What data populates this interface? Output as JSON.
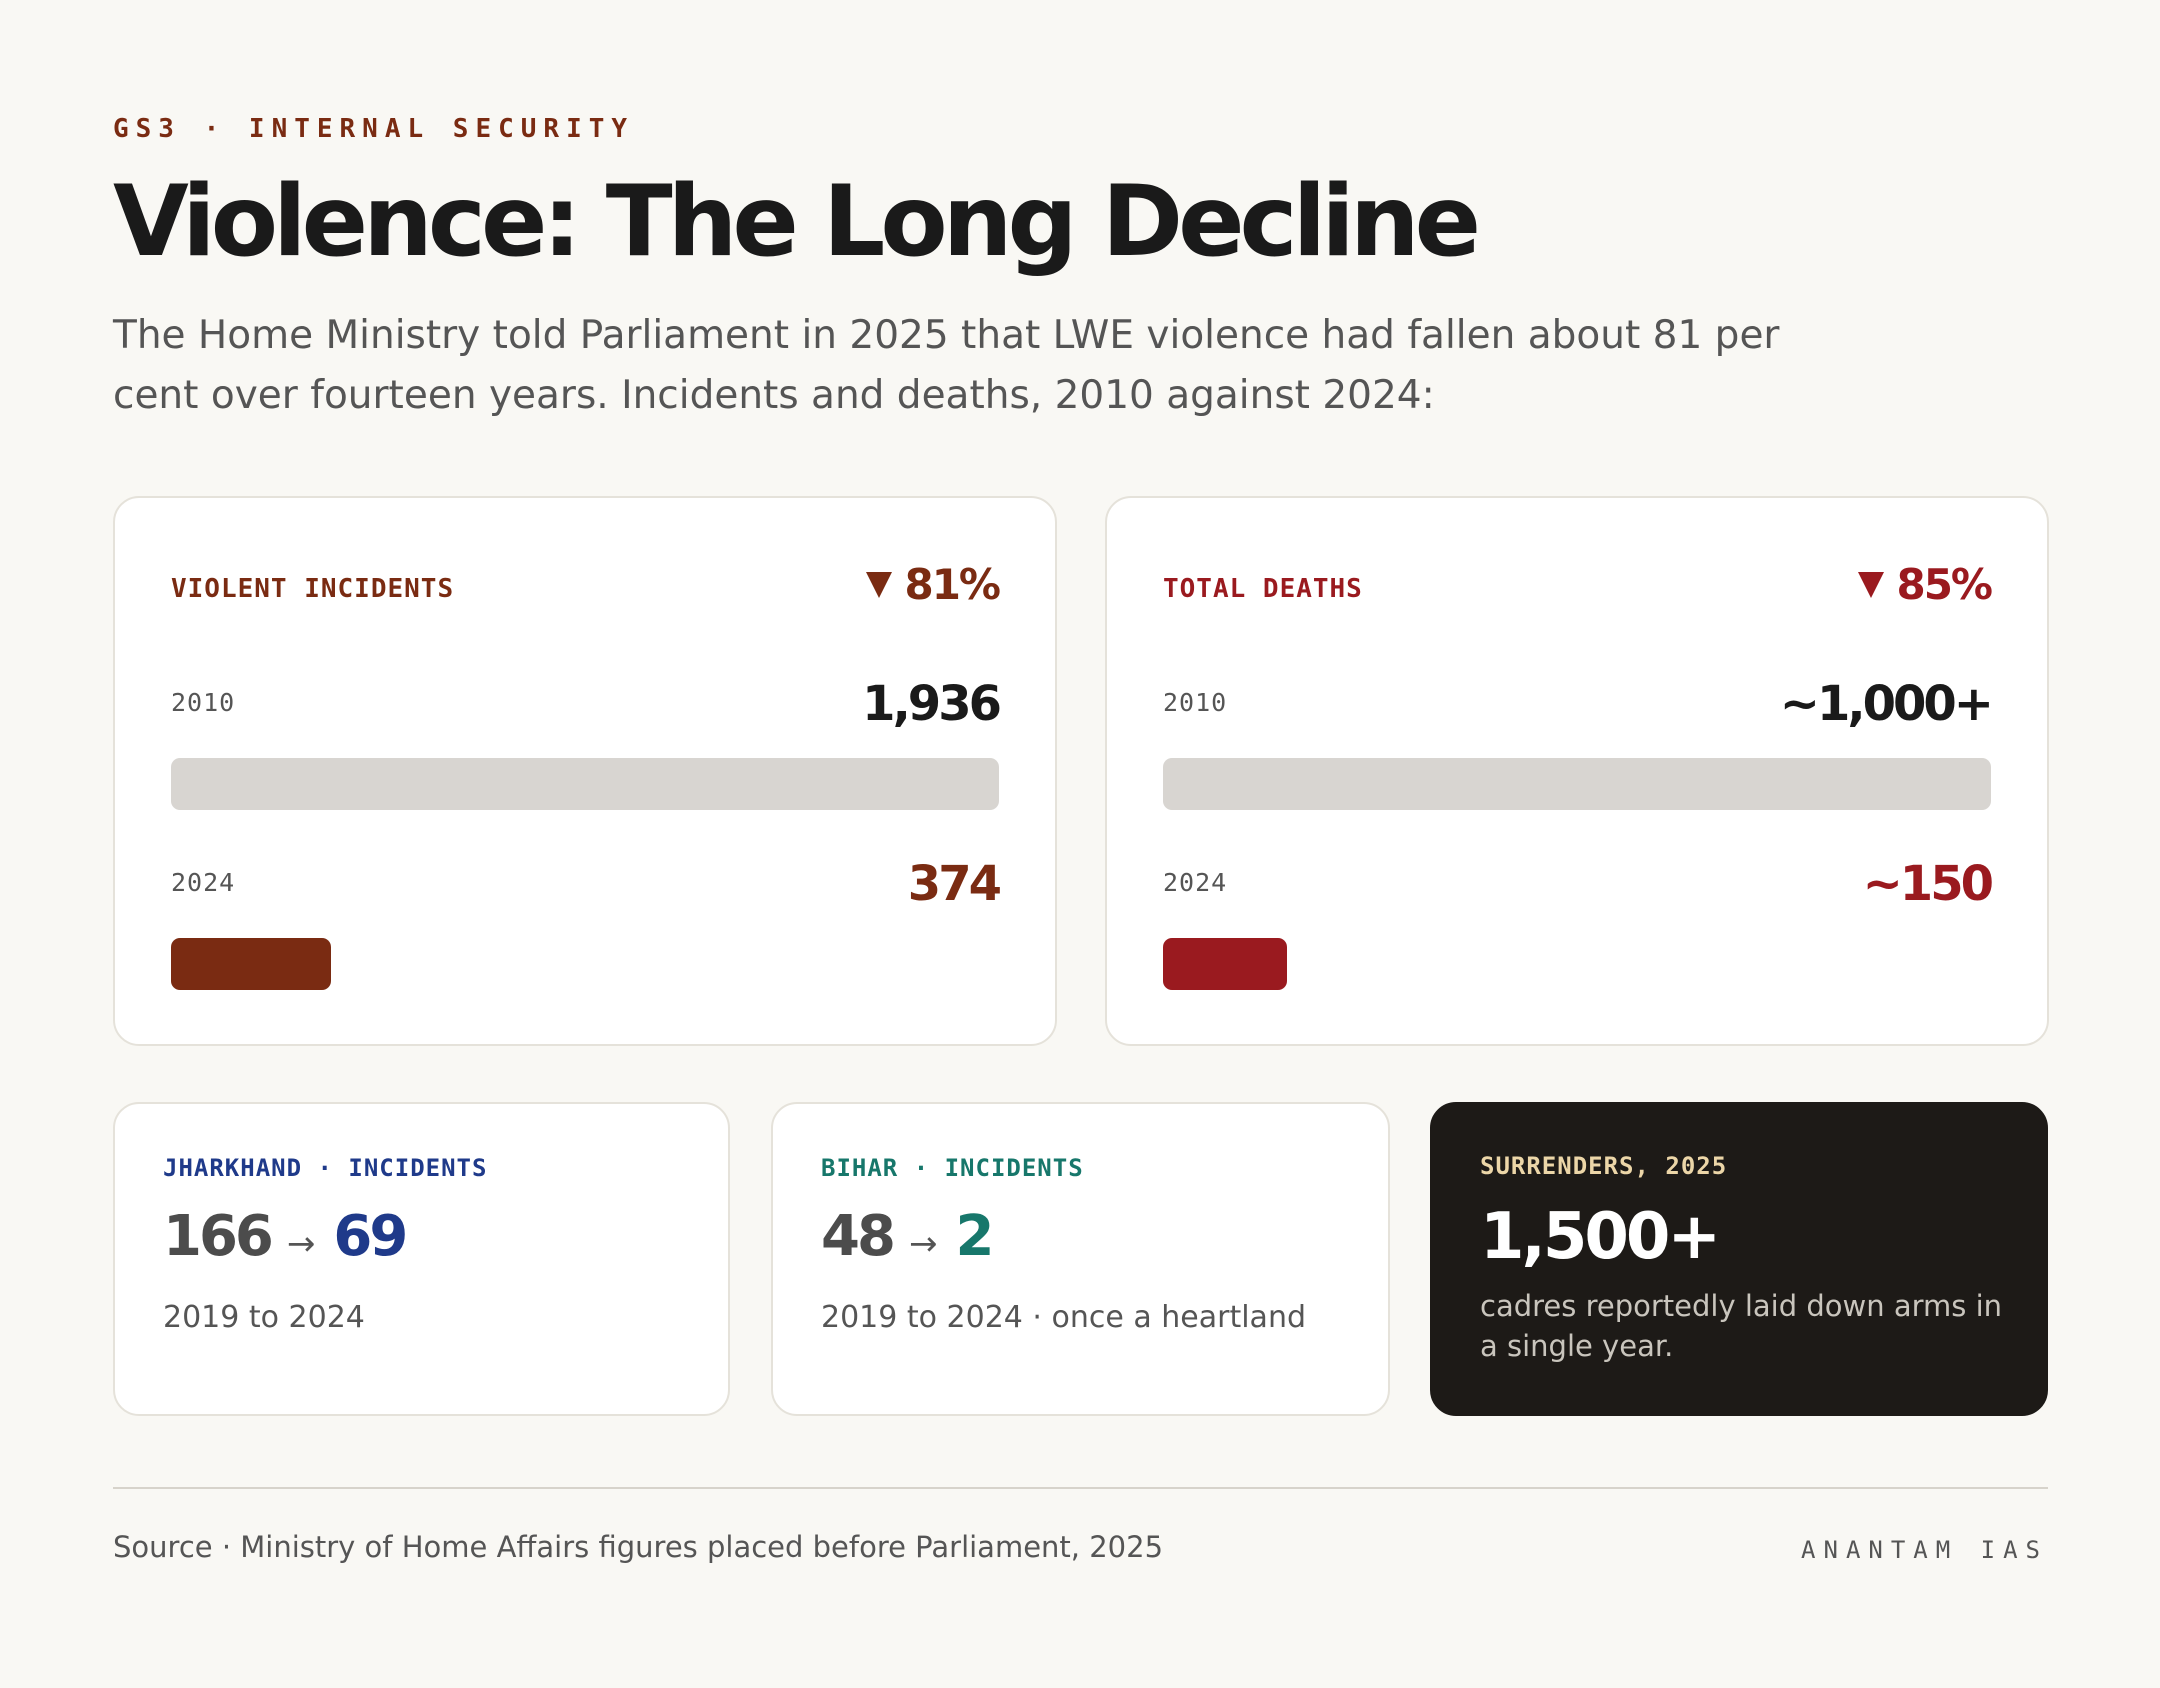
{
  "header": {
    "eyebrow": "GS3 · INTERNAL SECURITY",
    "title": "Violence: The Long Decline",
    "subtitle": "The Home Ministry told Parliament in 2025 that LWE violence had fallen about 81 per cent over fourteen years. Incidents and deaths, 2010 against 2024:"
  },
  "colors": {
    "incidents": "#7a2b12",
    "deaths": "#9a1a1f",
    "track": "#d8d5d1",
    "jharkhand": "#1f3a8a",
    "bihar": "#17776b",
    "surrenders_label": "#ecd6a8"
  },
  "chart_data": [
    {
      "type": "bar",
      "title": "VIOLENT INCIDENTS",
      "change": "81%",
      "categories": [
        "2010",
        "2024"
      ],
      "values": [
        1936,
        374
      ],
      "value_labels": [
        "1,936",
        "374"
      ]
    },
    {
      "type": "bar",
      "title": "TOTAL DEATHS",
      "change": "85%",
      "categories": [
        "2010",
        "2024"
      ],
      "values": [
        1000,
        150
      ],
      "value_labels": [
        "~1,000+",
        "~150"
      ]
    }
  ],
  "jharkhand": {
    "label": "JHARKHAND · INCIDENTS",
    "from": "166",
    "to": "69",
    "arrow": "→",
    "note": "2019 to 2024"
  },
  "bihar": {
    "label": "BIHAR · INCIDENTS",
    "from": "48",
    "to": "2",
    "arrow": "→",
    "note": "2019 to 2024 · once a heartland"
  },
  "surrenders": {
    "label": "SURRENDERS, 2025",
    "value": "1,500+",
    "desc": "cadres reportedly laid down arms in a single year."
  },
  "footer": {
    "source": "Source · Ministry of Home Affairs figures placed before Parliament, 2025",
    "brand": "ANANTAM IAS"
  }
}
